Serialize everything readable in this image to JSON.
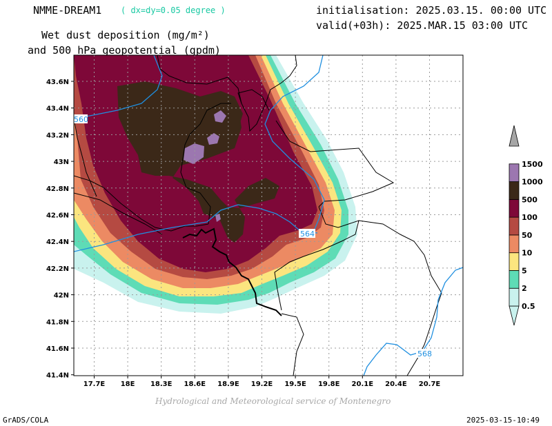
{
  "header": {
    "model": "NMME-DREAM1",
    "resolution": "( dx=dy=0.05 degree )",
    "variable_line1": "Wet dust deposition (mg/m²)",
    "variable_line2": "and 500 hPa geopotential (gpdm)",
    "init": "initialisation: 2025.03.15. 00:00 UTC",
    "valid": "valid(+03h): 2025.MAR.15 03:00 UTC"
  },
  "credit": "Hydrological and Meteorological service of Montenegro",
  "footer": {
    "left": "GrADS/COLA",
    "right": "2025-03-15-10:49"
  },
  "axes": {
    "lat_labels": [
      "43.6N",
      "43.4N",
      "43.2N",
      "43N",
      "42.8N",
      "42.6N",
      "42.4N",
      "42.2N",
      "42N",
      "41.8N",
      "41.6N",
      "41.4N"
    ],
    "lon_labels": [
      "17.7E",
      "18E",
      "18.3E",
      "18.6E",
      "18.9E",
      "19.2E",
      "19.5E",
      "19.8E",
      "20.1E",
      "20.4E",
      "20.7E"
    ]
  },
  "legend": {
    "levels": [
      "0.5",
      "2",
      "5",
      "10",
      "50",
      "100",
      "500",
      "1000",
      "1500"
    ],
    "colors": [
      "#c9f2ee",
      "#5edcb6",
      "#fbe57f",
      "#ec8a63",
      "#b54a42",
      "#7e0838",
      "#3b2818",
      "#9c77b0",
      "#a6a6a6"
    ]
  },
  "contours": {
    "labels": [
      "560",
      "564",
      "568"
    ],
    "color": "#1f8fe0"
  }
}
